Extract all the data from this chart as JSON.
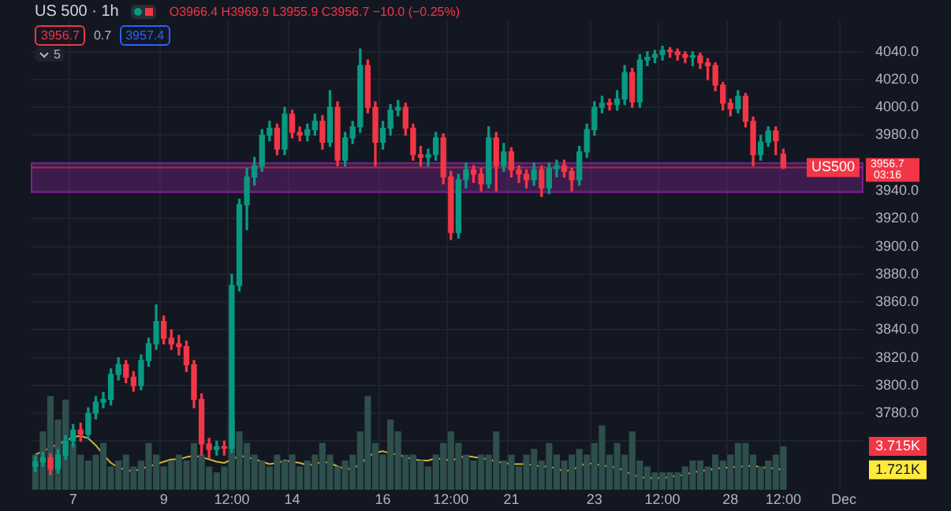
{
  "chart_data": {
    "type": "candlestick",
    "title": "US 500 · 1h",
    "subtitle": "O3966.4 H3969.9 L3955.9 C3956.7 −10.0 (−0.25%)",
    "categories": [
      null,
      null,
      null,
      null,
      null,
      "7",
      null,
      null,
      null,
      null,
      null,
      null,
      null,
      null,
      null,
      null,
      null,
      "9",
      null,
      null,
      null,
      null,
      null,
      null,
      null,
      null,
      "12:00",
      null,
      null,
      null,
      null,
      null,
      null,
      null,
      "14",
      null,
      null,
      null,
      null,
      null,
      null,
      null,
      null,
      null,
      null,
      null,
      "16",
      null,
      null,
      null,
      null,
      null,
      null,
      null,
      null,
      "12:00",
      null,
      null,
      null,
      null,
      null,
      null,
      null,
      "21",
      null,
      null,
      null,
      null,
      null,
      null,
      null,
      null,
      null,
      null,
      "23",
      null,
      null,
      null,
      null,
      null,
      null,
      null,
      null,
      "12:00",
      null,
      null,
      null,
      null,
      null,
      null,
      null,
      null,
      "28",
      null,
      null,
      null,
      null,
      null,
      null,
      "12:00",
      null,
      null,
      null,
      null,
      null,
      null,
      null,
      "Dec",
      null,
      null
    ],
    "ohlc": [
      [
        3742,
        3749,
        3738,
        3745
      ],
      [
        3745,
        3752,
        3742,
        3748
      ],
      [
        3748,
        3751,
        3736,
        3740
      ],
      [
        3740,
        3754,
        3737,
        3750
      ],
      [
        3750,
        3764,
        3747,
        3760
      ],
      [
        3760,
        3772,
        3756,
        3768
      ],
      [
        3768,
        3773,
        3760,
        3765
      ],
      [
        3765,
        3784,
        3762,
        3780
      ],
      [
        3780,
        3792,
        3776,
        3788
      ],
      [
        3788,
        3795,
        3784,
        3790
      ],
      [
        3790,
        3812,
        3786,
        3808
      ],
      [
        3808,
        3820,
        3804,
        3815
      ],
      [
        3815,
        3818,
        3802,
        3806
      ],
      [
        3806,
        3810,
        3796,
        3800
      ],
      [
        3800,
        3822,
        3797,
        3818
      ],
      [
        3818,
        3834,
        3814,
        3830
      ],
      [
        3830,
        3858,
        3826,
        3846
      ],
      [
        3846,
        3850,
        3830,
        3834
      ],
      [
        3834,
        3840,
        3826,
        3830
      ],
      [
        3830,
        3836,
        3822,
        3828
      ],
      [
        3828,
        3832,
        3810,
        3815
      ],
      [
        3815,
        3818,
        3784,
        3790
      ],
      [
        3790,
        3794,
        3750,
        3758
      ],
      [
        3758,
        3762,
        3748,
        3754
      ],
      [
        3754,
        3760,
        3750,
        3756
      ],
      [
        3756,
        3760,
        3750,
        3755
      ],
      [
        3755,
        3880,
        3752,
        3872
      ],
      [
        3872,
        3934,
        3868,
        3930
      ],
      [
        3930,
        3956,
        3912,
        3950
      ],
      [
        3950,
        3964,
        3944,
        3958
      ],
      [
        3958,
        3984,
        3954,
        3980
      ],
      [
        3980,
        3990,
        3976,
        3985
      ],
      [
        3985,
        3988,
        3966,
        3970
      ],
      [
        3970,
        4000,
        3966,
        3995
      ],
      [
        3995,
        3998,
        3978,
        3982
      ],
      [
        3982,
        3986,
        3976,
        3980
      ],
      [
        3980,
        3988,
        3976,
        3984
      ],
      [
        3984,
        3995,
        3980,
        3990
      ],
      [
        3990,
        3994,
        3970,
        3975
      ],
      [
        3975,
        4012,
        3972,
        4000
      ],
      [
        4000,
        4004,
        3958,
        3962
      ],
      [
        3962,
        3982,
        3958,
        3978
      ],
      [
        3978,
        3990,
        3974,
        3986
      ],
      [
        3986,
        4042,
        3982,
        4030
      ],
      [
        4030,
        4034,
        3996,
        4000
      ],
      [
        4000,
        4004,
        3958,
        3975
      ],
      [
        3975,
        3990,
        3970,
        3985
      ],
      [
        3985,
        4002,
        3980,
        3998
      ],
      [
        3998,
        4005,
        3994,
        4000
      ],
      [
        4000,
        4003,
        3980,
        3985
      ],
      [
        3985,
        3988,
        3962,
        3966
      ],
      [
        3966,
        3972,
        3958,
        3964
      ],
      [
        3964,
        3970,
        3958,
        3966
      ],
      [
        3966,
        3982,
        3962,
        3978
      ],
      [
        3978,
        3981,
        3945,
        3950
      ],
      [
        3950,
        3954,
        3905,
        3910
      ],
      [
        3910,
        3952,
        3906,
        3948
      ],
      [
        3948,
        3960,
        3942,
        3955
      ],
      [
        3955,
        3958,
        3946,
        3952
      ],
      [
        3952,
        3956,
        3940,
        3945
      ],
      [
        3945,
        3986,
        3942,
        3978
      ],
      [
        3978,
        3982,
        3940,
        3958
      ],
      [
        3958,
        3974,
        3954,
        3968
      ],
      [
        3968,
        3971,
        3950,
        3955
      ],
      [
        3955,
        3958,
        3946,
        3952
      ],
      [
        3952,
        3955,
        3942,
        3948
      ],
      [
        3948,
        3960,
        3944,
        3955
      ],
      [
        3955,
        3958,
        3936,
        3942
      ],
      [
        3942,
        3960,
        3938,
        3956
      ],
      [
        3956,
        3962,
        3950,
        3958
      ],
      [
        3958,
        3962,
        3950,
        3954
      ],
      [
        3954,
        3956,
        3940,
        3948
      ],
      [
        3948,
        3972,
        3944,
        3968
      ],
      [
        3968,
        3988,
        3964,
        3984
      ],
      [
        3984,
        4004,
        3980,
        4000
      ],
      [
        4000,
        4008,
        3996,
        4003
      ],
      [
        4003,
        4006,
        3998,
        4002
      ],
      [
        4002,
        4012,
        3998,
        4006
      ],
      [
        4006,
        4030,
        4002,
        4025
      ],
      [
        4025,
        4028,
        4000,
        4004
      ],
      [
        4004,
        4038,
        4000,
        4034
      ],
      [
        4034,
        4040,
        4030,
        4036
      ],
      [
        4036,
        4041,
        4032,
        4038
      ],
      [
        4038,
        4044,
        4034,
        4041
      ],
      [
        4041,
        4043,
        4036,
        4040
      ],
      [
        4040,
        4042,
        4034,
        4038
      ],
      [
        4038,
        4040,
        4032,
        4036
      ],
      [
        4036,
        4040,
        4030,
        4037
      ],
      [
        4037,
        4039,
        4028,
        4032
      ],
      [
        4032,
        4035,
        4020,
        4030
      ],
      [
        4030,
        4032,
        4012,
        4016
      ],
      [
        4016,
        4018,
        3998,
        4003
      ],
      [
        4003,
        4006,
        3994,
        3999
      ],
      [
        3999,
        4012,
        3996,
        4008
      ],
      [
        4008,
        4010,
        3986,
        3990
      ],
      [
        3990,
        3993,
        3958,
        3966
      ],
      [
        3966,
        3980,
        3962,
        3975
      ],
      [
        3975,
        3986,
        3972,
        3983
      ],
      [
        3983,
        3986,
        3966,
        3976
      ],
      [
        3966.4,
        3969.9,
        3955.9,
        3956.7
      ],
      null,
      null,
      null,
      null,
      null,
      null,
      null,
      null,
      null,
      null
    ],
    "colors": [
      "#089981",
      "#089981",
      "#f23645",
      "#089981",
      "#089981",
      "#089981",
      "#f23645",
      "#089981",
      "#089981",
      "#089981",
      "#089981",
      "#089981",
      "#f23645",
      "#f23645",
      "#089981",
      "#089981",
      "#089981",
      "#f23645",
      "#f23645",
      "#f23645",
      "#f23645",
      "#f23645",
      "#f23645",
      "#f23645",
      "#089981",
      "#f23645",
      "#089981",
      "#089981",
      "#089981",
      "#089981",
      "#089981",
      "#089981",
      "#f23645",
      "#089981",
      "#f23645",
      "#f23645",
      "#089981",
      "#089981",
      "#f23645",
      "#089981",
      "#f23645",
      "#089981",
      "#089981",
      "#089981",
      "#f23645",
      "#f23645",
      "#089981",
      "#089981",
      "#089981",
      "#f23645",
      "#f23645",
      "#f23645",
      "#089981",
      "#089981",
      "#f23645",
      "#f23645",
      "#089981",
      "#089981",
      "#f23645",
      "#f23645",
      "#089981",
      "#f23645",
      "#089981",
      "#f23645",
      "#f23645",
      "#f23645",
      "#089981",
      "#f23645",
      "#089981",
      "#089981",
      "#f23645",
      "#f23645",
      "#089981",
      "#089981",
      "#089981",
      "#089981",
      "#f23645",
      "#089981",
      "#089981",
      "#f23645",
      "#089981",
      "#089981",
      "#089981",
      "#089981",
      "#f23645",
      "#f23645",
      "#f23645",
      "#089981",
      "#f23645",
      "#f23645",
      "#f23645",
      "#f23645",
      "#f23645",
      "#089981",
      "#f23645",
      "#f23645",
      "#089981",
      "#089981",
      "#f23645",
      "#f23645",
      null,
      null,
      null,
      null,
      null,
      null,
      null,
      null,
      null,
      null
    ],
    "ylim": [
      3725,
      4062
    ],
    "yticks": [
      {
        "value": 3760,
        "label": null
      },
      {
        "value": 3780,
        "label": "3780.0"
      },
      {
        "value": 3800,
        "label": "3800.0"
      },
      {
        "value": 3820,
        "label": "3820.0"
      },
      {
        "value": 3840,
        "label": "3840.0"
      },
      {
        "value": 3860,
        "label": "3860.0"
      },
      {
        "value": 3880,
        "label": "3880.0"
      },
      {
        "value": 3900,
        "label": "3900.0"
      },
      {
        "value": 3920,
        "label": "3920.0"
      },
      {
        "value": 3940,
        "label": "3940.0"
      },
      {
        "value": 3980,
        "label": "3980.0"
      },
      {
        "value": 4000,
        "label": "4000.0"
      },
      {
        "value": 4020,
        "label": "4020.0"
      },
      {
        "value": 4040,
        "label": "4040.0"
      }
    ],
    "y2lim": [
      0,
      40
    ],
    "y2ticks": [
      {
        "value": 3.715,
        "label": "3.715K"
      },
      {
        "value": 1.721,
        "label": "1.721K"
      }
    ],
    "series": [
      {
        "type": "bar",
        "axis": "y2",
        "color": "#2e4f4c",
        "values": [
          3,
          5,
          8,
          6,
          7.7,
          4,
          3,
          2.5,
          3,
          4,
          2,
          2.5,
          3,
          2,
          2.5,
          4,
          3,
          2,
          2.5,
          3,
          2.5,
          4,
          3,
          2,
          1.5,
          2,
          6,
          5,
          4,
          3,
          2.5,
          2,
          3,
          2.5,
          3,
          2,
          2.5,
          3,
          4,
          3,
          2,
          2.5,
          3,
          5,
          8,
          4,
          3,
          6,
          5,
          3,
          3,
          2.5,
          2,
          3,
          4,
          5,
          4,
          3,
          2.5,
          3,
          3,
          5,
          2.5,
          3,
          2,
          3,
          3.5,
          2.5,
          4,
          3,
          2.5,
          3,
          3.5,
          3,
          4,
          5.5,
          3,
          4,
          3,
          5,
          2.5,
          2,
          1.5,
          1.5,
          1.5,
          1.5,
          2,
          2.5,
          2.5,
          2,
          3,
          2.5,
          3,
          4,
          4,
          3,
          2,
          2.5,
          3,
          3.715,
          null,
          null,
          null,
          null,
          null,
          null,
          null,
          null,
          null,
          null
        ]
      },
      {
        "type": "line",
        "axis": "y2",
        "color": "#c9b33a",
        "values": [
          3.0,
          3.3,
          3.6,
          3.9,
          4.2,
          4.5,
          4.6,
          4.4,
          3.8,
          3.0,
          2.3,
          1.9,
          1.7,
          1.6,
          1.8,
          2.0,
          2.2,
          2.4,
          2.6,
          2.6,
          2.8,
          2.9,
          2.8,
          2.6,
          2.4,
          2.3,
          2.6,
          2.9,
          2.8,
          2.6,
          2.4,
          2.2,
          2.3,
          2.5,
          2.4,
          2.3,
          2.1,
          2.2,
          2.4,
          2.3,
          2.0,
          1.8,
          1.8,
          2.2,
          2.8,
          3.2,
          3.3,
          3.1,
          3.0,
          2.8,
          2.6,
          2.5,
          2.5,
          2.7,
          2.6,
          2.5,
          2.7,
          2.9,
          2.8,
          2.7,
          2.6,
          2.4,
          2.3,
          2.2,
          2.2,
          2.2,
          2.1,
          2.0,
          2.0,
          1.8,
          1.6,
          1.7,
          2.0,
          2.3,
          2.2,
          2.1,
          2.0,
          1.9,
          1.6,
          1.3,
          1.1,
          1.0,
          1.0,
          1.0,
          1.1,
          1.2,
          1.3,
          1.5,
          1.6,
          1.7,
          1.8,
          1.9,
          1.9,
          2.0,
          2.0,
          2.1,
          1.9,
          1.9,
          1.8,
          1.721,
          null,
          null,
          null,
          null,
          null,
          null,
          null,
          null,
          null,
          null
        ]
      }
    ],
    "bands": [
      {
        "axis": "y",
        "from": 3939,
        "to": 3960,
        "color": "#9c27b0"
      }
    ],
    "ref_lines": [
      {
        "axis": "y",
        "value": 3956.7,
        "label": "US500",
        "color": "#f23645"
      }
    ],
    "annotations": [
      "3956.7",
      "03:16",
      "3956.7",
      "0.7",
      "3957.4",
      "5"
    ],
    "grid": true,
    "legend": false,
    "marker": "none"
  }
}
